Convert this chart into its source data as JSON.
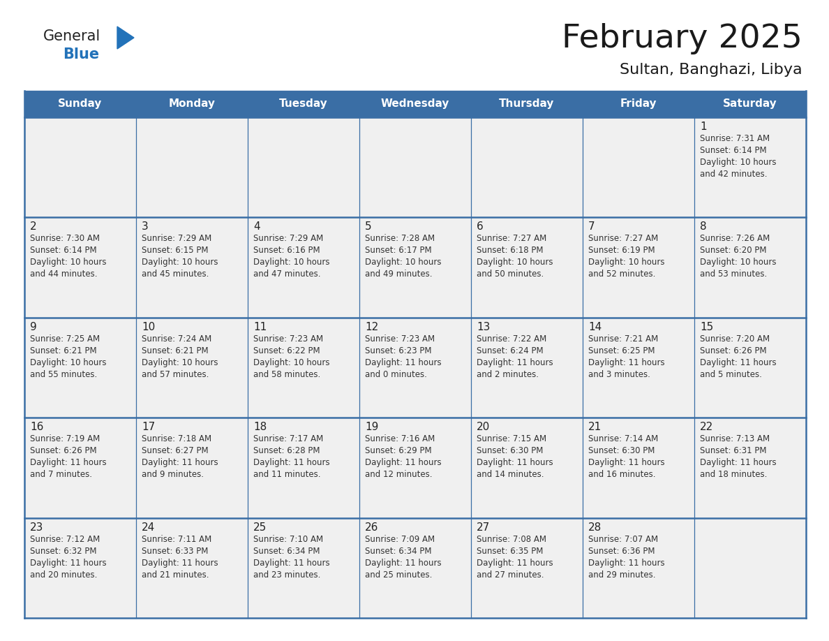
{
  "title": "February 2025",
  "subtitle": "Sultan, Banghazi, Libya",
  "days_of_week": [
    "Sunday",
    "Monday",
    "Tuesday",
    "Wednesday",
    "Thursday",
    "Friday",
    "Saturday"
  ],
  "header_bg": "#3a6ea5",
  "header_text": "#ffffff",
  "cell_bg": "#f0f0f0",
  "text_color": "#333333",
  "day_number_color": "#222222",
  "line_color": "#3a6ea5",
  "title_color": "#1a1a1a",
  "subtitle_color": "#1a1a1a",
  "logo_general_color": "#222222",
  "logo_blue_color": "#2272b9",
  "logo_triangle_color": "#2272b9",
  "calendar_data": [
    [
      null,
      null,
      null,
      null,
      null,
      null,
      {
        "day": 1,
        "sunrise": "7:31 AM",
        "sunset": "6:14 PM",
        "daylight": "10 hours and 42 minutes."
      }
    ],
    [
      {
        "day": 2,
        "sunrise": "7:30 AM",
        "sunset": "6:14 PM",
        "daylight": "10 hours and 44 minutes."
      },
      {
        "day": 3,
        "sunrise": "7:29 AM",
        "sunset": "6:15 PM",
        "daylight": "10 hours and 45 minutes."
      },
      {
        "day": 4,
        "sunrise": "7:29 AM",
        "sunset": "6:16 PM",
        "daylight": "10 hours and 47 minutes."
      },
      {
        "day": 5,
        "sunrise": "7:28 AM",
        "sunset": "6:17 PM",
        "daylight": "10 hours and 49 minutes."
      },
      {
        "day": 6,
        "sunrise": "7:27 AM",
        "sunset": "6:18 PM",
        "daylight": "10 hours and 50 minutes."
      },
      {
        "day": 7,
        "sunrise": "7:27 AM",
        "sunset": "6:19 PM",
        "daylight": "10 hours and 52 minutes."
      },
      {
        "day": 8,
        "sunrise": "7:26 AM",
        "sunset": "6:20 PM",
        "daylight": "10 hours and 53 minutes."
      }
    ],
    [
      {
        "day": 9,
        "sunrise": "7:25 AM",
        "sunset": "6:21 PM",
        "daylight": "10 hours and 55 minutes."
      },
      {
        "day": 10,
        "sunrise": "7:24 AM",
        "sunset": "6:21 PM",
        "daylight": "10 hours and 57 minutes."
      },
      {
        "day": 11,
        "sunrise": "7:23 AM",
        "sunset": "6:22 PM",
        "daylight": "10 hours and 58 minutes."
      },
      {
        "day": 12,
        "sunrise": "7:23 AM",
        "sunset": "6:23 PM",
        "daylight": "11 hours and 0 minutes."
      },
      {
        "day": 13,
        "sunrise": "7:22 AM",
        "sunset": "6:24 PM",
        "daylight": "11 hours and 2 minutes."
      },
      {
        "day": 14,
        "sunrise": "7:21 AM",
        "sunset": "6:25 PM",
        "daylight": "11 hours and 3 minutes."
      },
      {
        "day": 15,
        "sunrise": "7:20 AM",
        "sunset": "6:26 PM",
        "daylight": "11 hours and 5 minutes."
      }
    ],
    [
      {
        "day": 16,
        "sunrise": "7:19 AM",
        "sunset": "6:26 PM",
        "daylight": "11 hours and 7 minutes."
      },
      {
        "day": 17,
        "sunrise": "7:18 AM",
        "sunset": "6:27 PM",
        "daylight": "11 hours and 9 minutes."
      },
      {
        "day": 18,
        "sunrise": "7:17 AM",
        "sunset": "6:28 PM",
        "daylight": "11 hours and 11 minutes."
      },
      {
        "day": 19,
        "sunrise": "7:16 AM",
        "sunset": "6:29 PM",
        "daylight": "11 hours and 12 minutes."
      },
      {
        "day": 20,
        "sunrise": "7:15 AM",
        "sunset": "6:30 PM",
        "daylight": "11 hours and 14 minutes."
      },
      {
        "day": 21,
        "sunrise": "7:14 AM",
        "sunset": "6:30 PM",
        "daylight": "11 hours and 16 minutes."
      },
      {
        "day": 22,
        "sunrise": "7:13 AM",
        "sunset": "6:31 PM",
        "daylight": "11 hours and 18 minutes."
      }
    ],
    [
      {
        "day": 23,
        "sunrise": "7:12 AM",
        "sunset": "6:32 PM",
        "daylight": "11 hours and 20 minutes."
      },
      {
        "day": 24,
        "sunrise": "7:11 AM",
        "sunset": "6:33 PM",
        "daylight": "11 hours and 21 minutes."
      },
      {
        "day": 25,
        "sunrise": "7:10 AM",
        "sunset": "6:34 PM",
        "daylight": "11 hours and 23 minutes."
      },
      {
        "day": 26,
        "sunrise": "7:09 AM",
        "sunset": "6:34 PM",
        "daylight": "11 hours and 25 minutes."
      },
      {
        "day": 27,
        "sunrise": "7:08 AM",
        "sunset": "6:35 PM",
        "daylight": "11 hours and 27 minutes."
      },
      {
        "day": 28,
        "sunrise": "7:07 AM",
        "sunset": "6:36 PM",
        "daylight": "11 hours and 29 minutes."
      },
      null
    ]
  ]
}
